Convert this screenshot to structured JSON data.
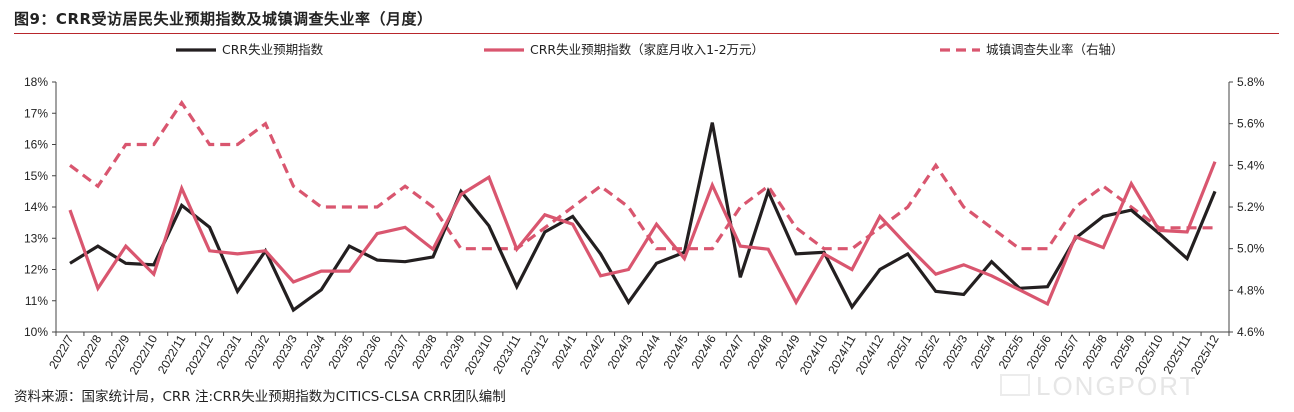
{
  "title": "图9：CRR受访居民失业预期指数及城镇调查失业率（月度）",
  "source": "资料来源：国家统计局，CRR 注:CRR失业预期指数为CITICS-CLSA CRR团队编制",
  "watermark": "LONGPORT",
  "colors": {
    "black_series": "#231f20",
    "pink_series": "#d9566f",
    "dash_series": "#d9566f",
    "title_rule": "#b8262c"
  },
  "chart_data": {
    "type": "line",
    "categories": [
      "2022/7",
      "2022/8",
      "2022/9",
      "2022/10",
      "2022/11",
      "2022/12",
      "2023/1",
      "2023/2",
      "2023/3",
      "2023/4",
      "2023/5",
      "2023/6",
      "2023/7",
      "2023/8",
      "2023/9",
      "2023/10",
      "2023/11",
      "2023/12",
      "2024/1",
      "2024/2",
      "2024/3",
      "2024/4",
      "2024/5",
      "2024/6",
      "2024/7",
      "2024/8",
      "2024/9",
      "2024/10",
      "2024/11",
      "2024/12",
      "2025/1",
      "2025/2",
      "2025/3",
      "2025/4",
      "2025/5",
      "2025/6",
      "2025/7",
      "2025/8",
      "2025/9",
      "2025/10",
      "2025/11",
      "2025/12"
    ],
    "y_left": {
      "ylim": [
        10,
        18
      ],
      "ticks": [
        "10%",
        "11%",
        "12%",
        "13%",
        "14%",
        "15%",
        "16%",
        "17%",
        "18%"
      ]
    },
    "y_right": {
      "ylim": [
        4.6,
        5.8
      ],
      "ticks": [
        "4.6%",
        "4.8%",
        "5.0%",
        "5.2%",
        "5.4%",
        "5.6%",
        "5.8%"
      ]
    },
    "legend_placement": "top",
    "series": [
      {
        "name": "CRR失业预期指数",
        "axis": "left",
        "style": "solid",
        "color": "#231f20",
        "values": [
          12.2,
          12.75,
          12.2,
          12.15,
          14.05,
          13.35,
          11.3,
          12.6,
          10.7,
          11.35,
          12.75,
          12.3,
          12.25,
          12.4,
          14.5,
          13.4,
          11.45,
          13.2,
          13.7,
          12.5,
          10.95,
          12.2,
          12.55,
          16.7,
          11.75,
          14.5,
          12.5,
          12.55,
          10.8,
          12.0,
          12.5,
          11.3,
          11.2,
          12.25,
          11.4,
          11.45,
          13.0,
          13.7,
          13.9,
          13.15,
          12.35,
          14.5
        ]
      },
      {
        "name": "CRR失业预期指数（家庭月收入1-2万元）",
        "axis": "left",
        "style": "solid",
        "color": "#d9566f",
        "values": [
          13.9,
          11.4,
          12.75,
          11.85,
          14.6,
          12.6,
          12.5,
          12.6,
          11.6,
          11.95,
          11.95,
          13.15,
          13.35,
          12.65,
          14.4,
          14.95,
          12.65,
          13.75,
          13.45,
          11.8,
          12.0,
          13.45,
          12.35,
          14.7,
          12.75,
          12.65,
          10.95,
          12.5,
          12.0,
          13.7,
          12.75,
          11.85,
          12.15,
          11.8,
          11.35,
          10.9,
          13.05,
          12.7,
          14.75,
          13.25,
          13.2,
          15.45
        ]
      },
      {
        "name": "城镇调查失业率（右轴）",
        "axis": "right",
        "style": "dashed",
        "color": "#d9566f",
        "values": [
          5.4,
          5.3,
          5.5,
          5.5,
          5.7,
          5.5,
          5.5,
          5.6,
          5.3,
          5.2,
          5.2,
          5.2,
          5.3,
          5.2,
          5.0,
          5.0,
          5.0,
          5.1,
          5.2,
          5.3,
          5.2,
          5.0,
          5.0,
          5.0,
          5.2,
          5.3,
          5.1,
          5.0,
          5.0,
          5.1,
          5.2,
          5.4,
          5.2,
          5.1,
          5.0,
          5.0,
          5.2,
          5.3,
          5.2,
          5.1,
          5.1,
          5.1
        ]
      }
    ]
  }
}
